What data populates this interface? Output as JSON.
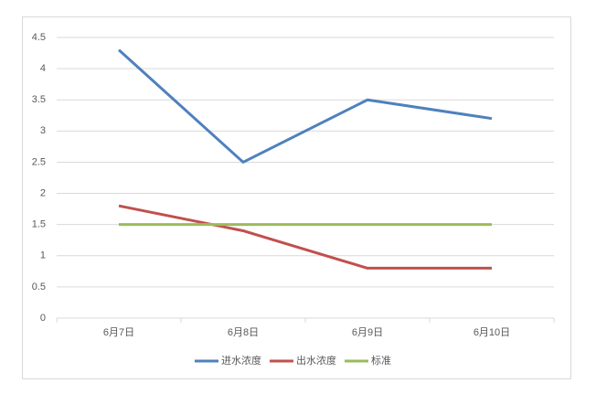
{
  "chart_data": {
    "type": "line",
    "categories": [
      "6月7日",
      "6月8日",
      "6月9日",
      "6月10日"
    ],
    "series": [
      {
        "name": "进水浓度",
        "color": "#4f81bd",
        "values": [
          4.3,
          2.5,
          3.5,
          3.2
        ]
      },
      {
        "name": "出水浓度",
        "color": "#c0504d",
        "values": [
          1.8,
          1.4,
          0.8,
          0.8
        ]
      },
      {
        "name": "标准",
        "color": "#9bbb59",
        "values": [
          1.5,
          1.5,
          1.5,
          1.5
        ]
      }
    ],
    "ylim": [
      0,
      4.5
    ],
    "yticks": [
      0,
      0.5,
      1,
      1.5,
      2,
      2.5,
      3,
      3.5,
      4,
      4.5
    ],
    "grid": true,
    "legend": "bottom"
  }
}
